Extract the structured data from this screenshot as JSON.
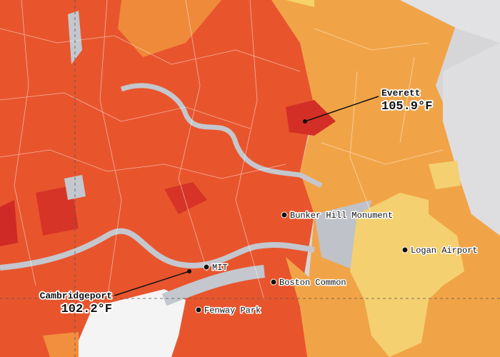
{
  "callouts": [
    {
      "name": "Everett",
      "temperature": "105.9°F"
    },
    {
      "name": "Cambridgeport",
      "temperature": "102.2°F"
    }
  ],
  "landmarks": [
    "Bunker Hill Monument",
    "Logan Airport",
    "MIT",
    "Boston Common",
    "Fenway Park"
  ]
}
